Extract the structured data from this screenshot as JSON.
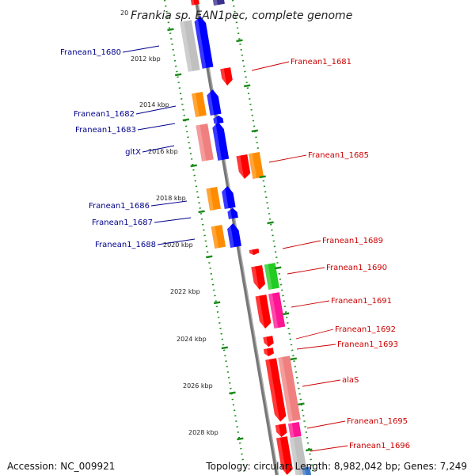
{
  "title": {
    "prefix": "20",
    "text": "Frankia sp. EAN1pec, complete genome"
  },
  "footer": {
    "accession": "Accession: NC_009921",
    "topology": "Topology: circular; Length: 8,982,042 bp; Genes: 7,249"
  },
  "colors": {
    "strand_forward": "#0000ff",
    "strand_reverse": "#ff0000",
    "orange": "#ff8c00",
    "salmon": "#f08080",
    "gray": "#c0c0c0",
    "green": "#22cc22",
    "magenta": "#ff1493",
    "tick_green": "#1a8c1a",
    "label_forward": "#00008b",
    "label_reverse": "#cc0000"
  },
  "ticks": [
    "2012 kbp",
    "2014 kbp",
    "2016 kbp",
    "2018 kbp",
    "2020 kbp",
    "2022 kbp",
    "2024 kbp",
    "2026 kbp",
    "2028 kbp"
  ],
  "genes_forward": [
    "Franean1_1680",
    "Franean1_1682",
    "Franean1_1683",
    "gltX",
    "Franean1_1686",
    "Franean1_1687",
    "Franean1_1688"
  ],
  "genes_reverse": [
    "Franean1_1681",
    "Franean1_1685",
    "Franean1_1689",
    "Franean1_1690",
    "Franean1_1691",
    "Franean1_1692",
    "Franean1_1693",
    "alaS",
    "Franean1_1695",
    "Franean1_1696"
  ]
}
